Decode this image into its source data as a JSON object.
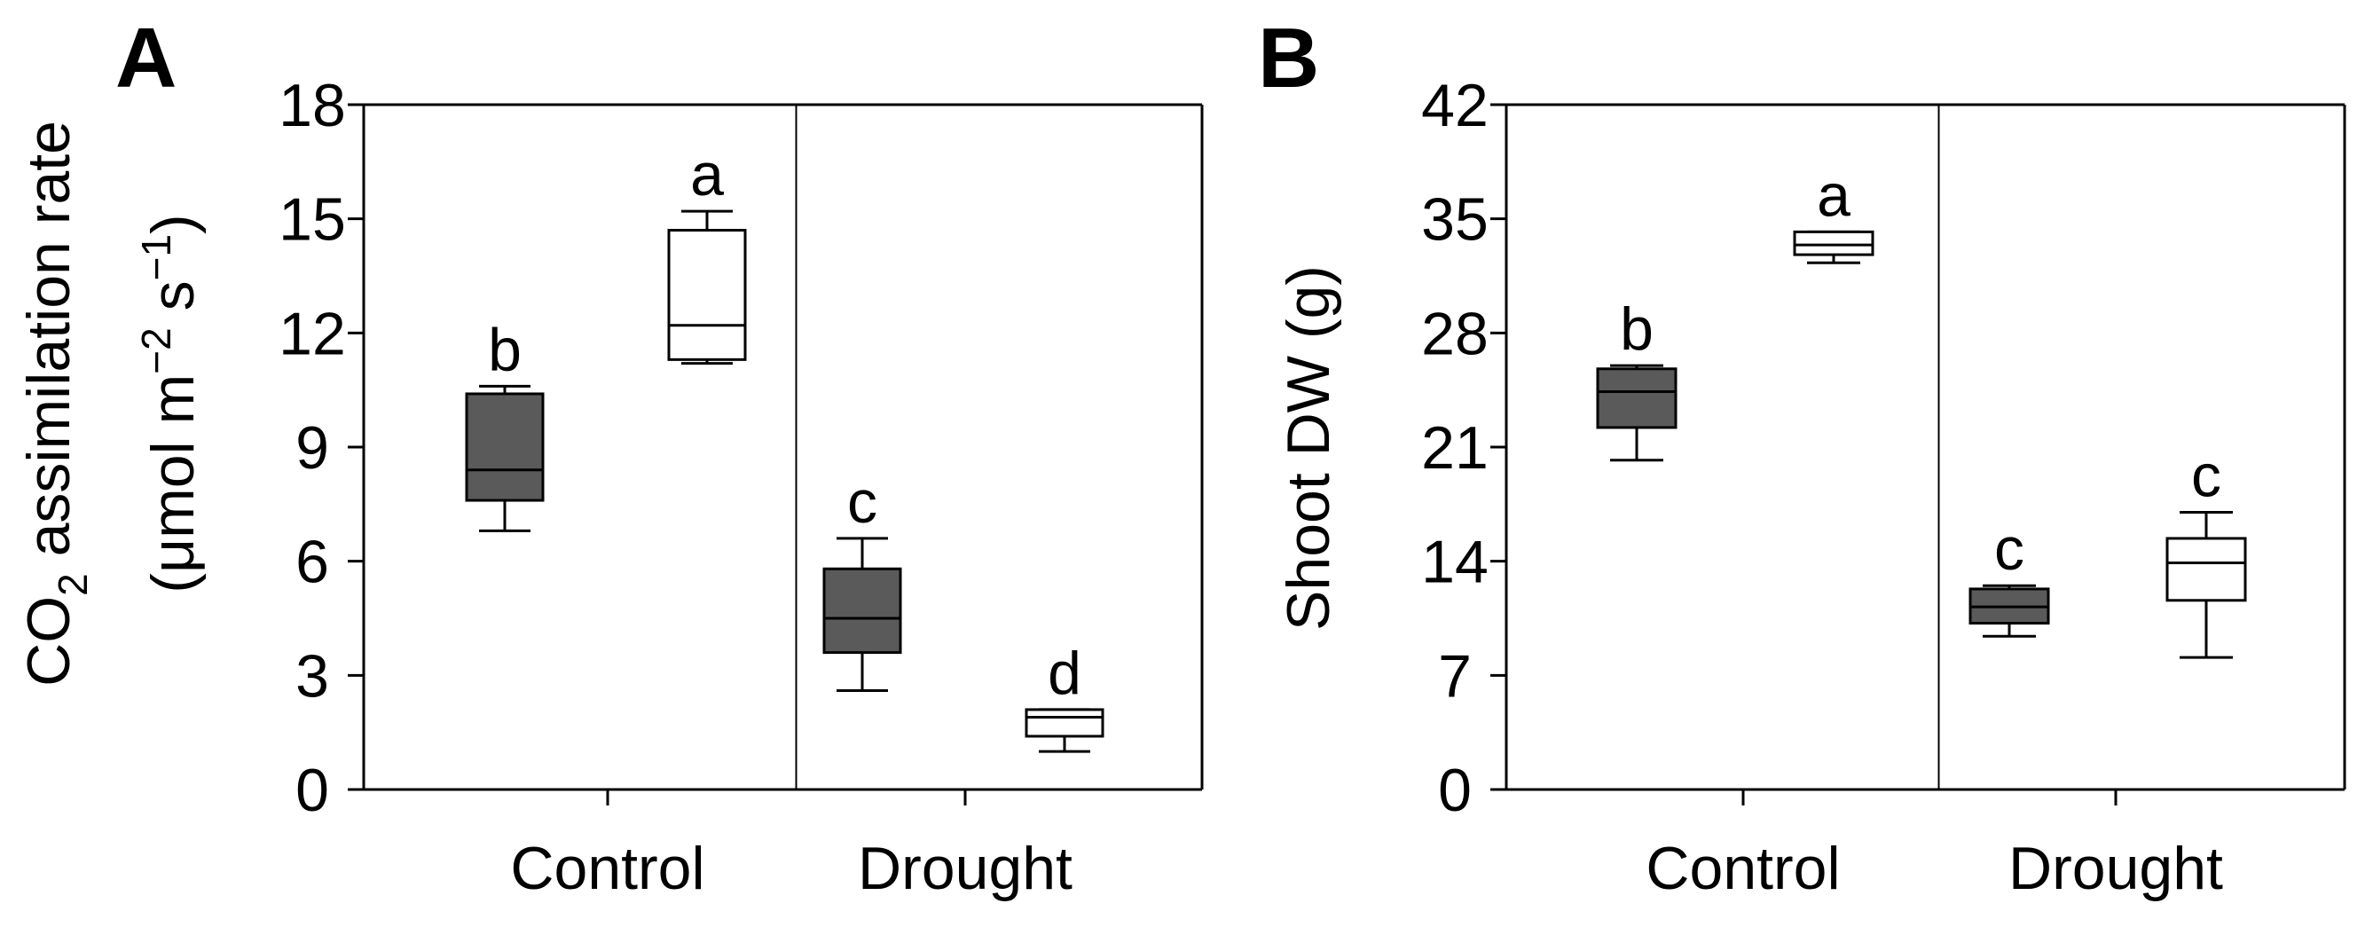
{
  "chart_data": [
    {
      "type": "box",
      "panel_label": "A",
      "ylabel_line1_main": "CO",
      "ylabel_line1_sub": "2",
      "ylabel_line1_rest": " assimilation rate",
      "ylabel_line2_a": "(μmol m",
      "ylabel_line2_sup1": "−2",
      "ylabel_line2_b": " s",
      "ylabel_line2_sup2": "−1",
      "ylabel_line2_c": ")",
      "ylim": [
        0,
        18
      ],
      "yticks": [
        "0",
        "3",
        "6",
        "9",
        "12",
        "15",
        "18"
      ],
      "categories": [
        "Control",
        "Drought"
      ],
      "series": [
        {
          "fill": "#5a5a5a"
        },
        {
          "fill": "#ffffff"
        }
      ],
      "boxes": [
        {
          "category": "Control",
          "series": 0,
          "min": 6.8,
          "q1": 7.6,
          "median": 8.4,
          "q3": 10.4,
          "max": 10.6,
          "letter": "b"
        },
        {
          "category": "Control",
          "series": 1,
          "min": 11.2,
          "q1": 11.3,
          "median": 12.2,
          "q3": 14.7,
          "max": 15.2,
          "letter": "a"
        },
        {
          "category": "Drought",
          "series": 0,
          "min": 2.6,
          "q1": 3.6,
          "median": 4.5,
          "q3": 5.8,
          "max": 6.6,
          "letter": "c"
        },
        {
          "category": "Drought",
          "series": 1,
          "min": 1.0,
          "q1": 1.4,
          "median": 1.9,
          "q3": 2.1,
          "max": 2.1,
          "letter": "d"
        }
      ]
    },
    {
      "type": "box",
      "panel_label": "B",
      "ylabel": "Shoot DW (g)",
      "ylim": [
        0,
        42
      ],
      "yticks": [
        "0",
        "7",
        "14",
        "21",
        "28",
        "35",
        "42"
      ],
      "categories": [
        "Control",
        "Drought"
      ],
      "series": [
        {
          "fill": "#5a5a5a"
        },
        {
          "fill": "#ffffff"
        }
      ],
      "boxes": [
        {
          "category": "Control",
          "series": 0,
          "min": 20.2,
          "q1": 22.2,
          "median": 24.4,
          "q3": 25.8,
          "max": 26.0,
          "letter": "b"
        },
        {
          "category": "Control",
          "series": 1,
          "min": 32.3,
          "q1": 32.8,
          "median": 33.4,
          "q3": 34.2,
          "max": 34.2,
          "letter": "a"
        },
        {
          "category": "Drought",
          "series": 0,
          "min": 9.4,
          "q1": 10.2,
          "median": 11.2,
          "q3": 12.3,
          "max": 12.5,
          "letter": "c"
        },
        {
          "category": "Drought",
          "series": 1,
          "min": 8.1,
          "q1": 11.6,
          "median": 13.9,
          "q3": 15.4,
          "max": 17.0,
          "letter": "c"
        }
      ]
    }
  ]
}
